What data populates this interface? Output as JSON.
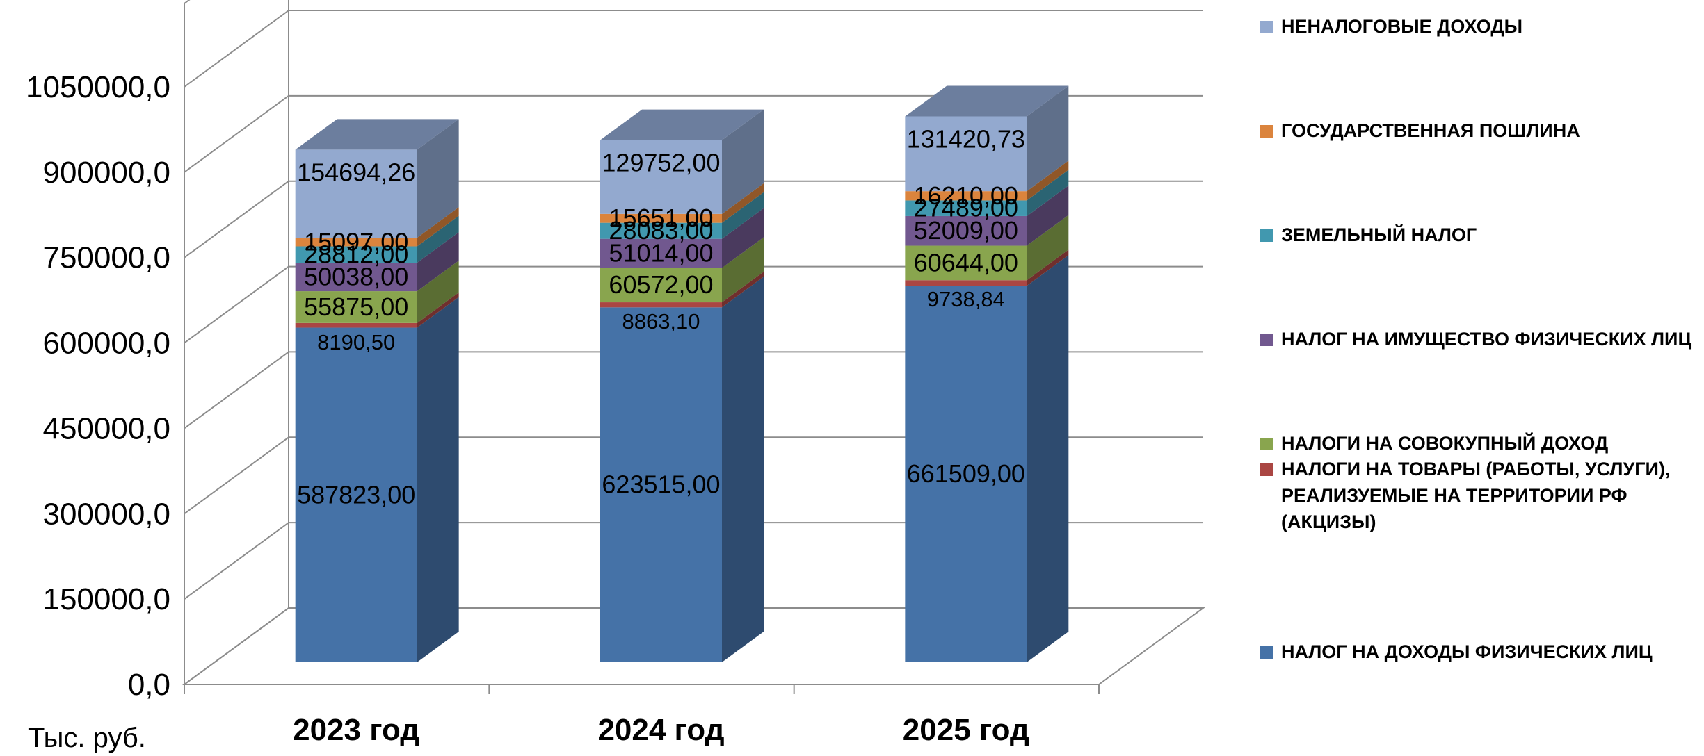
{
  "chart_data": {
    "type": "bar",
    "stacked": true,
    "three_d": true,
    "categories": [
      "2023 год",
      "2024 год",
      "2025 год"
    ],
    "ylabel": "Тыс. руб.",
    "ylim": [
      0,
      1050000
    ],
    "yticks": [
      "0,0",
      "150000,0",
      "300000,0",
      "450000,0",
      "600000,0",
      "750000,0",
      "900000,0",
      "1050000,0"
    ],
    "ytick_values": [
      0,
      150000,
      300000,
      450000,
      600000,
      750000,
      900000,
      1050000
    ],
    "grid": true,
    "legend_position": "right",
    "series": [
      {
        "name": "НАЛОГ НА ДОХОДЫ ФИЗИЧЕСКИХ ЛИЦ",
        "color": "#4572A7",
        "side_color": "#2E4B6F",
        "top_color": "#6E8FBB",
        "values": [
          587823.0,
          623515.0,
          661509.0
        ],
        "labels": [
          "587823,00",
          "623515,00",
          "661509,00"
        ]
      },
      {
        "name": "НАЛОГИ НА ТОВАРЫ (РАБОТЫ, УСЛУГИ), РЕАЛИЗУЕМЫЕ НА ТЕРРИТОРИИ РФ (АКЦИЗЫ)",
        "color": "#AA4643",
        "side_color": "#702F2D",
        "top_color": "#C26B68",
        "values": [
          8190.5,
          8863.1,
          9738.84
        ],
        "labels": [
          "8190,50",
          "8863,10",
          "9738,84"
        ]
      },
      {
        "name": "НАЛОГИ НА СОВОКУПНЫЙ ДОХОД",
        "color": "#89A54E",
        "side_color": "#5A6D33",
        "top_color": "#A4BD71",
        "values": [
          55875.0,
          60572.0,
          60644.0
        ],
        "labels": [
          "55875,00",
          "60572,00",
          "60644,00"
        ]
      },
      {
        "name": "НАЛОГ НА ИМУЩЕСТВО ФИЗИЧЕСКИХ ЛИЦ",
        "color": "#71588F",
        "side_color": "#4A3A5E",
        "top_color": "#8F7AAA",
        "values": [
          50038.0,
          51014.0,
          52009.0
        ],
        "labels": [
          "50038,00",
          "51014,00",
          "52009,00"
        ]
      },
      {
        "name": "ЗЕМЕЛЬНЫЙ НАЛОГ",
        "color": "#4198AF",
        "side_color": "#2B6473",
        "top_color": "#68B2C6",
        "values": [
          28812.0,
          28083.0,
          27489.0
        ],
        "labels": [
          "28812,00",
          "28083,00",
          "27489,00"
        ]
      },
      {
        "name": "ГОСУДАРСТВЕННАЯ ПОШЛИНА",
        "color": "#DB843D",
        "side_color": "#905728",
        "top_color": "#E6A26A",
        "values": [
          15097.0,
          15651.0,
          16210.0
        ],
        "labels": [
          "15097,00",
          "15651,00",
          "16210,00"
        ]
      },
      {
        "name": "НЕНАЛОГОВЫЕ ДОХОДЫ",
        "color": "#93A9CF",
        "side_color": "#5F6F8A",
        "top_color": "#6C7E9E",
        "values": [
          154694.26,
          129752.0,
          131420.73
        ],
        "labels": [
          "154694,26",
          "129752,00",
          "131420,73"
        ]
      }
    ],
    "legend_order": [
      "НЕНАЛОГОВЫЕ ДОХОДЫ",
      "ГОСУДАРСТВЕННАЯ ПОШЛИНА",
      "ЗЕМЕЛЬНЫЙ НАЛОГ",
      "НАЛОГ НА ИМУЩЕСТВО ФИЗИЧЕСКИХ ЛИЦ",
      "НАЛОГИ НА СОВОКУПНЫЙ ДОХОД",
      "НАЛОГИ НА ТОВАРЫ (РАБОТЫ, УСЛУГИ), РЕАЛИЗУЕМЫЕ НА ТЕРРИТОРИИ РФ (АКЦИЗЫ)",
      "НАЛОГ НА ДОХОДЫ ФИЗИЧЕСКИХ ЛИЦ"
    ],
    "grid_color": "#8C8C8C",
    "axis_color": "#8C8C8C"
  }
}
